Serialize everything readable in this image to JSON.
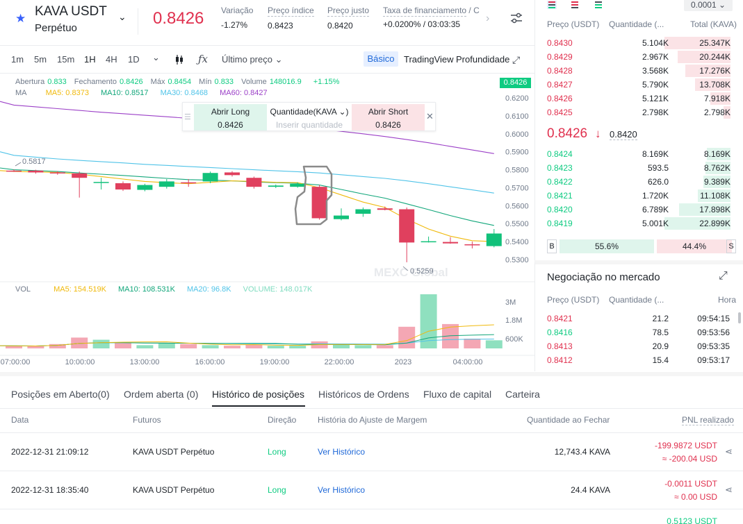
{
  "header": {
    "pair": "KAVA USDT",
    "contract": "Perpétuo",
    "last_price": "0.8426",
    "stats": [
      {
        "label": "Variação",
        "value": "-1.27%",
        "color": "#e0304e"
      },
      {
        "label": "Preço índice",
        "value": "0.8423",
        "color": "#1e2329"
      },
      {
        "label": "Preço justo",
        "value": "0.8420",
        "color": "#1e2329"
      },
      {
        "label": "Taxa de financiamento",
        "value": "+0.0200%  /  03:03:35",
        "color": "#1e2329"
      }
    ],
    "funding_suffix": "/ C"
  },
  "toolbar": {
    "timeframes": [
      "1m",
      "5m",
      "15m",
      "1H",
      "4H",
      "1D"
    ],
    "active": "1H",
    "price_type": "Último preço",
    "views": [
      "Básico",
      "TradingView",
      "Profundidade"
    ]
  },
  "chart_info": {
    "ohlc": [
      {
        "label": "Abertura",
        "value": "0.833"
      },
      {
        "label": "Fechamento",
        "value": "0.8426"
      },
      {
        "label": "Máx",
        "value": "0.8454"
      },
      {
        "label": "Mín",
        "value": "0.833"
      },
      {
        "label": "Volume",
        "value": "148016.9"
      }
    ],
    "change": "+1.15%",
    "ma_label": "MA",
    "ma": [
      {
        "label": "MA5: 0.8373",
        "color": "#f0b90b"
      },
      {
        "label": "MA10: 0.8517",
        "color": "#11a67a"
      },
      {
        "label": "MA30: 0.8468",
        "color": "#4fc3e8"
      },
      {
        "label": "MA60: 0.8427",
        "color": "#9b3fc7"
      }
    ],
    "price_tag": "0.8426",
    "high_label": "0.5817",
    "low_label": "0.5259",
    "watermark": "MEXC Global",
    "vol_label": "VOL",
    "vol_ma": [
      {
        "label": "MA5: 154.519K",
        "color": "#f0b90b"
      },
      {
        "label": "MA10: 108.531K",
        "color": "#11a67a"
      },
      {
        "label": "MA20: 96.8K",
        "color": "#4fc3e8"
      },
      {
        "label": "VOLUME: 148.017K",
        "color": "#7fdcc0"
      }
    ]
  },
  "trade_widget": {
    "long_label": "Abrir Long",
    "long_price": "0.8426",
    "qty_label": "Quantidade(KAVA ⌄)",
    "qty_placeholder": "Inserir quantidade",
    "short_label": "Abrir Short",
    "short_price": "0.8426"
  },
  "chart_data": {
    "type": "candlestick",
    "y_ticks": [
      "0.6200",
      "0.6100",
      "0.6000",
      "0.5900",
      "0.5800",
      "0.5700",
      "0.5600",
      "0.5500",
      "0.5400",
      "0.5300"
    ],
    "y_range": [
      0.525,
      0.625
    ],
    "x_ticks": [
      "07:00:00",
      "10:00:00",
      "13:00:00",
      "16:00:00",
      "19:00:00",
      "22:00:00",
      "2023",
      "04:00:00"
    ],
    "volume_ticks": [
      "3M",
      "1.8M",
      "600K"
    ],
    "candles": [
      {
        "o": 0.5795,
        "h": 0.5802,
        "l": 0.5788,
        "c": 0.579
      },
      {
        "o": 0.5795,
        "h": 0.58,
        "l": 0.5778,
        "c": 0.5785
      },
      {
        "o": 0.5785,
        "h": 0.5792,
        "l": 0.5772,
        "c": 0.578
      },
      {
        "o": 0.578,
        "h": 0.579,
        "l": 0.5645,
        "c": 0.5755
      },
      {
        "o": 0.573,
        "h": 0.5755,
        "l": 0.569,
        "c": 0.5732
      },
      {
        "o": 0.5725,
        "h": 0.5735,
        "l": 0.5682,
        "c": 0.569
      },
      {
        "o": 0.5688,
        "h": 0.5722,
        "l": 0.568,
        "c": 0.5715
      },
      {
        "o": 0.5705,
        "h": 0.5748,
        "l": 0.5695,
        "c": 0.5735
      },
      {
        "o": 0.573,
        "h": 0.5748,
        "l": 0.5705,
        "c": 0.5725
      },
      {
        "o": 0.5735,
        "h": 0.579,
        "l": 0.5725,
        "c": 0.5782
      },
      {
        "o": 0.5785,
        "h": 0.5792,
        "l": 0.5762,
        "c": 0.577
      },
      {
        "o": 0.5755,
        "h": 0.5762,
        "l": 0.5695,
        "c": 0.5705
      },
      {
        "o": 0.5705,
        "h": 0.5718,
        "l": 0.5698,
        "c": 0.5712
      },
      {
        "o": 0.5705,
        "h": 0.573,
        "l": 0.57,
        "c": 0.5722
      },
      {
        "o": 0.5705,
        "h": 0.5715,
        "l": 0.5522,
        "c": 0.553
      },
      {
        "o": 0.5525,
        "h": 0.5585,
        "l": 0.5518,
        "c": 0.5545
      },
      {
        "o": 0.5555,
        "h": 0.559,
        "l": 0.5538,
        "c": 0.558
      },
      {
        "o": 0.5585,
        "h": 0.5595,
        "l": 0.5574,
        "c": 0.5577
      },
      {
        "o": 0.558,
        "h": 0.559,
        "l": 0.5285,
        "c": 0.5395
      },
      {
        "o": 0.54,
        "h": 0.5428,
        "l": 0.5395,
        "c": 0.5402
      },
      {
        "o": 0.5398,
        "h": 0.5425,
        "l": 0.5388,
        "c": 0.539
      },
      {
        "o": 0.5385,
        "h": 0.54,
        "l": 0.5362,
        "c": 0.538
      },
      {
        "o": 0.5375,
        "h": 0.547,
        "l": 0.5368,
        "c": 0.5445
      }
    ],
    "volumes": [
      0.05,
      0.04,
      0.08,
      0.2,
      0.16,
      0.1,
      0.06,
      0.09,
      0.08,
      0.06,
      0.05,
      0.07,
      0.05,
      0.05,
      0.13,
      0.07,
      0.06,
      0.06,
      0.4,
      1.0,
      0.45,
      0.18,
      0.15
    ],
    "ma5": [
      0.579,
      0.5788,
      0.5785,
      0.5775,
      0.5762,
      0.5748,
      0.5735,
      0.5728,
      0.5722,
      0.573,
      0.5738,
      0.5735,
      0.573,
      0.5728,
      0.57,
      0.566,
      0.562,
      0.559,
      0.5525,
      0.547,
      0.543,
      0.5405,
      0.54
    ],
    "ma10": [
      0.58,
      0.5795,
      0.579,
      0.5782,
      0.5775,
      0.5768,
      0.576,
      0.5752,
      0.5745,
      0.5742,
      0.5738,
      0.5732,
      0.5728,
      0.5725,
      0.5715,
      0.569,
      0.5665,
      0.5642,
      0.561,
      0.5578,
      0.5545,
      0.5515,
      0.549
    ],
    "ma30": [
      0.588,
      0.587,
      0.586,
      0.5852,
      0.5845,
      0.5838,
      0.583,
      0.5824,
      0.5818,
      0.5812,
      0.5806,
      0.58,
      0.5794,
      0.5789,
      0.5782,
      0.5772,
      0.5762,
      0.5752,
      0.5738,
      0.5722,
      0.5705,
      0.5688,
      0.567
    ],
    "ma60": [
      0.616,
      0.615,
      0.614,
      0.613,
      0.612,
      0.6112,
      0.6103,
      0.6095,
      0.6086,
      0.6077,
      0.6068,
      0.6058,
      0.6048,
      0.6038,
      0.6027,
      0.6014,
      0.6,
      0.5985,
      0.5968,
      0.595,
      0.593,
      0.591,
      0.589
    ]
  },
  "orderbook": {
    "precision": "0.0001",
    "headers": [
      "Preço (USDT)",
      "Quantidade (...",
      "Total (KAVA)"
    ],
    "asks": [
      {
        "price": "0.8430",
        "qty": "5.104K",
        "total": "25.347K",
        "depth": 1.0
      },
      {
        "price": "0.8429",
        "qty": "2.967K",
        "total": "20.244K",
        "depth": 0.8
      },
      {
        "price": "0.8428",
        "qty": "3.568K",
        "total": "17.276K",
        "depth": 0.68
      },
      {
        "price": "0.8427",
        "qty": "5.790K",
        "total": "13.708K",
        "depth": 0.54
      },
      {
        "price": "0.8426",
        "qty": "5.121K",
        "total": "7.918K",
        "depth": 0.31
      },
      {
        "price": "0.8425",
        "qty": "2.798K",
        "total": "2.798K",
        "depth": 0.11
      }
    ],
    "mid_price": "0.8426",
    "mid_arrow": "↓",
    "mark_price": "0.8420",
    "bids": [
      {
        "price": "0.8424",
        "qty": "8.169K",
        "total": "8.169K",
        "depth": 0.36
      },
      {
        "price": "0.8423",
        "qty": "593.5",
        "total": "8.762K",
        "depth": 0.38
      },
      {
        "price": "0.8422",
        "qty": "626.0",
        "total": "9.389K",
        "depth": 0.41
      },
      {
        "price": "0.8421",
        "qty": "1.720K",
        "total": "11.108K",
        "depth": 0.49
      },
      {
        "price": "0.8420",
        "qty": "6.789K",
        "total": "17.898K",
        "depth": 0.78
      },
      {
        "price": "0.8419",
        "qty": "5.001K",
        "total": "22.899K",
        "depth": 1.0
      }
    ],
    "buy_label": "B",
    "buy_pct": "55.6%",
    "buy_ratio": 0.556,
    "sell_label": "S",
    "sell_pct": "44.4%"
  },
  "market_trades": {
    "title": "Negociação no mercado",
    "headers": [
      "Preço (USDT)",
      "Quantidade (...",
      "Hora"
    ],
    "rows": [
      {
        "price": "0.8421",
        "qty": "21.2",
        "time": "09:54:15",
        "side": "sell"
      },
      {
        "price": "0.8416",
        "qty": "78.5",
        "time": "09:53:56",
        "side": "buy"
      },
      {
        "price": "0.8413",
        "qty": "20.9",
        "time": "09:53:35",
        "side": "sell"
      },
      {
        "price": "0.8412",
        "qty": "15.4",
        "time": "09:53:17",
        "side": "sell"
      }
    ]
  },
  "positions": {
    "tabs": [
      "Posições em Aberto(0)",
      "Ordem aberta (0)",
      "Histórico de posições",
      "Históricos de Ordens",
      "Fluxo de capital",
      "Carteira"
    ],
    "active_tab": "Histórico de posições",
    "headers": [
      "Data",
      "Futuros",
      "Direção",
      "História do Ajuste de Margem",
      "Quantidade ao Fechar",
      "PNL realizado"
    ],
    "rows": [
      {
        "date": "2022-12-31 21:09:12",
        "contract": "KAVA USDT Perpétuo",
        "direction": "Long",
        "history": "Ver Histórico",
        "qty": "12,743.4 KAVA",
        "pnl": "-199.9872 USDT",
        "pnl_usd": "≈ -200.04 USD"
      },
      {
        "date": "2022-12-31 18:35:40",
        "contract": "KAVA USDT Perpétuo",
        "direction": "Long",
        "history": "Ver Histórico",
        "qty": "24.4 KAVA",
        "pnl": "-0.0011 USDT",
        "pnl_usd": "≈ 0.00 USD"
      }
    ],
    "partial_pnl": "0.5123 USDT"
  }
}
